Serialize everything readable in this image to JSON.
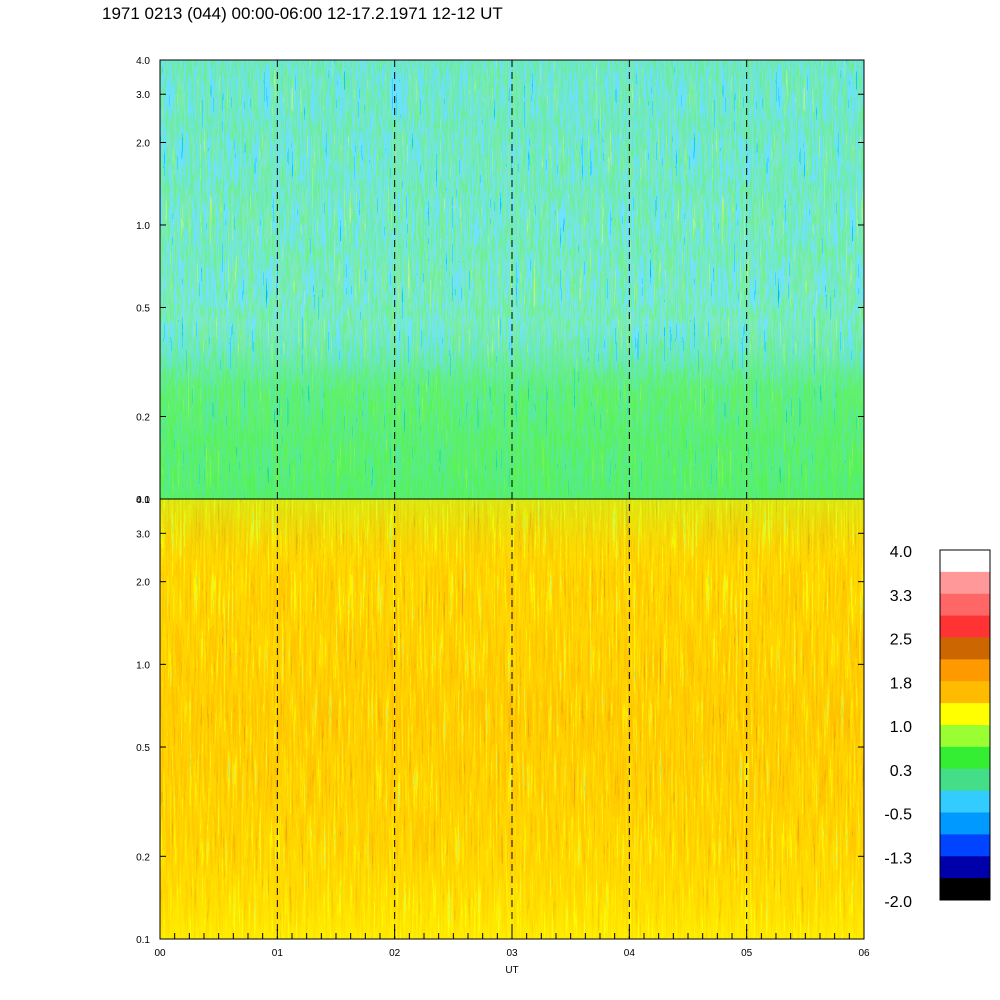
{
  "title": "1971 0213 (044) 00:00-06:00 12-17.2.1971  12-12 UT",
  "chart_data": {
    "type": "heatmap",
    "xlabel": "UT",
    "x_ticks": [
      "00",
      "01",
      "02",
      "03",
      "04",
      "05",
      "06"
    ],
    "xlim": [
      0,
      6
    ],
    "dashed_hour_lines": [
      1,
      2,
      3,
      4,
      5
    ],
    "y_scale": "log",
    "panels": [
      {
        "name": "upper",
        "ylim": [
          0.1,
          4.0
        ],
        "y_ticks": [
          "0.1",
          "0.2",
          "0.5",
          "1.0",
          "2.0",
          "3.0",
          "4.0"
        ],
        "dominant_levels": [
          "-1.3",
          "-0.5",
          "0.3",
          "1.0"
        ]
      },
      {
        "name": "lower",
        "ylim": [
          0.1,
          4.0
        ],
        "y_ticks": [
          "0.1",
          "0.2",
          "0.5",
          "1.0",
          "2.0",
          "3.0",
          "4.0"
        ],
        "dominant_levels": [
          "0.3",
          "1.0",
          "1.8",
          "2.5"
        ]
      }
    ],
    "colorbar": {
      "labels": [
        "4.0",
        "3.3",
        "2.5",
        "1.8",
        "1.0",
        "0.3",
        "-0.5",
        "-1.3",
        "-2.0"
      ],
      "colors_top_to_bottom": [
        "#ffffff",
        "#ff9999",
        "#ff6666",
        "#ff3333",
        "#cc6600",
        "#ff9900",
        "#ffbb00",
        "#ffff00",
        "#99ff33",
        "#33ee33",
        "#44dd88",
        "#33ccff",
        "#0099ff",
        "#0044ff",
        "#0000aa",
        "#000000"
      ]
    }
  }
}
